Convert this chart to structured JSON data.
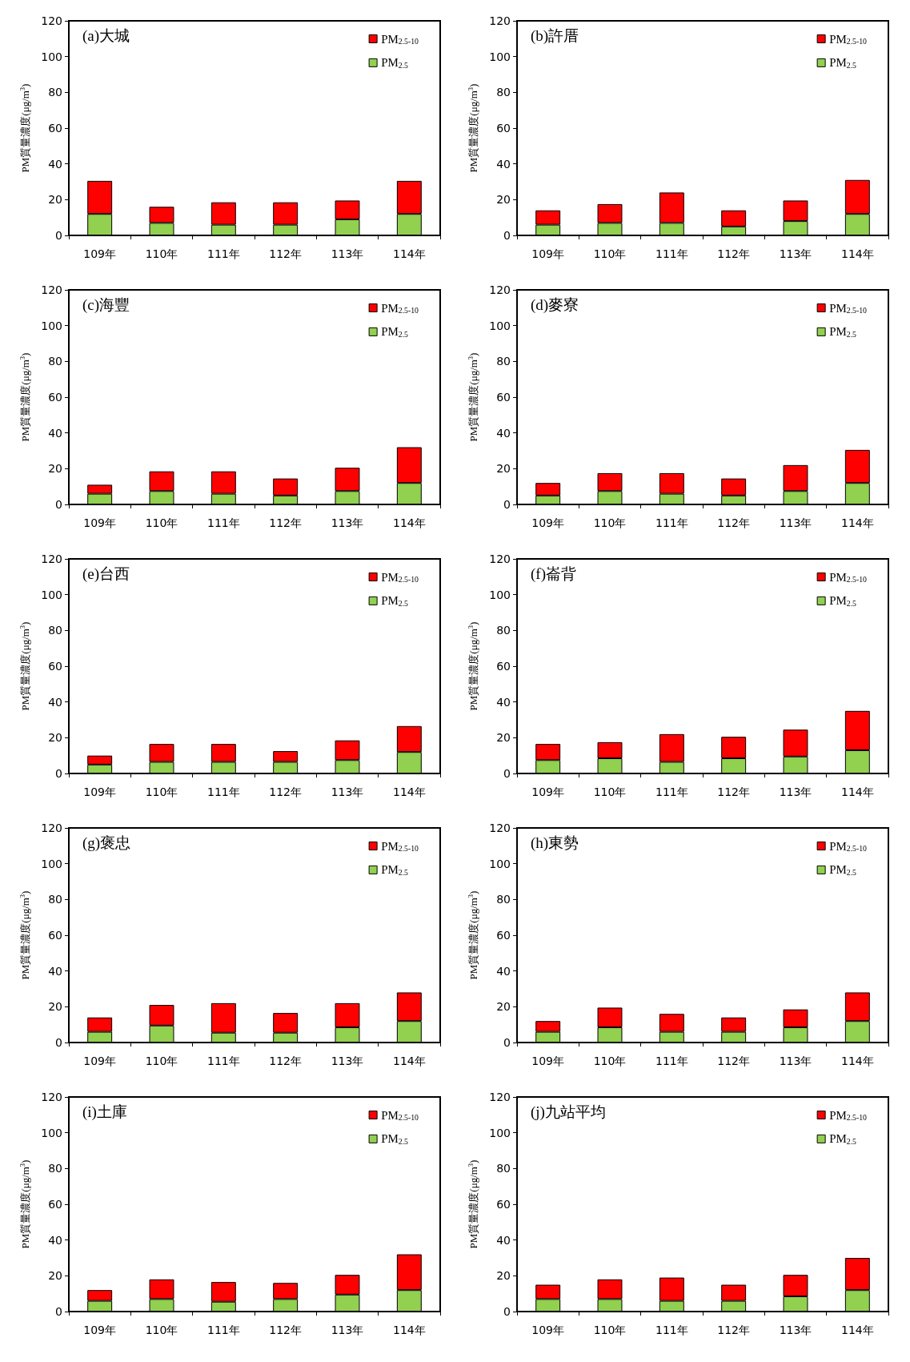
{
  "chart_data": [
    {
      "type": "bar",
      "title": "(a)大城",
      "ylabel": "PM質量濃度(μg/m$^{3}$)",
      "categories": [
        "109年",
        "110年",
        "111年",
        "112年",
        "113年",
        "114年"
      ],
      "stacked": true,
      "ylim": [
        0,
        120
      ],
      "yticks": [
        0,
        20,
        40,
        60,
        80,
        100,
        120
      ],
      "legend": "top right",
      "grid": false,
      "series": [
        {
          "name": "PM$_{2.5}$",
          "color": "#92d050",
          "values": [
            12,
            7,
            6,
            6,
            9,
            12
          ]
        },
        {
          "name": "PM$_{2.5-10}$",
          "color": "#ff0000",
          "values": [
            18.5,
            9,
            12.5,
            12.5,
            10.5,
            18.5
          ]
        }
      ]
    },
    {
      "type": "bar",
      "title": "(b)許厝",
      "ylabel": "PM質量濃度(μg/m$^{3}$)",
      "categories": [
        "109年",
        "110年",
        "111年",
        "112年",
        "113年",
        "114年"
      ],
      "stacked": true,
      "ylim": [
        0,
        120
      ],
      "yticks": [
        0,
        20,
        40,
        60,
        80,
        100,
        120
      ],
      "legend": "top right",
      "grid": false,
      "series": [
        {
          "name": "PM$_{2.5}$",
          "color": "#92d050",
          "values": [
            6,
            7,
            7,
            5,
            8,
            12
          ]
        },
        {
          "name": "PM$_{2.5-10}$",
          "color": "#ff0000",
          "values": [
            8,
            10.5,
            17,
            9,
            11.5,
            19
          ]
        }
      ]
    },
    {
      "type": "bar",
      "title": "(c)海豐",
      "ylabel": "PM質量濃度(μg/m$^{3}$)",
      "categories": [
        "109年",
        "110年",
        "111年",
        "112年",
        "113年",
        "114年"
      ],
      "stacked": true,
      "ylim": [
        0,
        120
      ],
      "yticks": [
        0,
        20,
        40,
        60,
        80,
        100,
        120
      ],
      "legend": "top right",
      "grid": false,
      "series": [
        {
          "name": "PM$_{2.5}$",
          "color": "#92d050",
          "values": [
            6,
            7.5,
            6,
            5,
            7.5,
            12
          ]
        },
        {
          "name": "PM$_{2.5-10}$",
          "color": "#ff0000",
          "values": [
            5,
            11,
            12.5,
            9.5,
            13,
            20
          ]
        }
      ]
    },
    {
      "type": "bar",
      "title": "(d)麥寮",
      "ylabel": "PM質量濃度(μg/m$^{3}$)",
      "categories": [
        "109年",
        "110年",
        "111年",
        "112年",
        "113年",
        "114年"
      ],
      "stacked": true,
      "ylim": [
        0,
        120
      ],
      "yticks": [
        0,
        20,
        40,
        60,
        80,
        100,
        120
      ],
      "legend": "top right",
      "grid": false,
      "series": [
        {
          "name": "PM$_{2.5}$",
          "color": "#92d050",
          "values": [
            5,
            7.5,
            6,
            5,
            7.5,
            12
          ]
        },
        {
          "name": "PM$_{2.5-10}$",
          "color": "#ff0000",
          "values": [
            7,
            10,
            11.5,
            9.5,
            14.5,
            18.5
          ]
        }
      ]
    },
    {
      "type": "bar",
      "title": "(e)台西",
      "ylabel": "PM質量濃度(μg/m$^{3}$)",
      "categories": [
        "109年",
        "110年",
        "111年",
        "112年",
        "113年",
        "114年"
      ],
      "stacked": true,
      "ylim": [
        0,
        120
      ],
      "yticks": [
        0,
        20,
        40,
        60,
        80,
        100,
        120
      ],
      "legend": "top right",
      "grid": false,
      "series": [
        {
          "name": "PM$_{2.5}$",
          "color": "#92d050",
          "values": [
            5,
            6.5,
            6.5,
            6.5,
            7.5,
            12
          ]
        },
        {
          "name": "PM$_{2.5-10}$",
          "color": "#ff0000",
          "values": [
            5,
            10,
            10,
            6,
            11,
            14.5
          ]
        }
      ]
    },
    {
      "type": "bar",
      "title": "(f)崙背",
      "ylabel": "PM質量濃度(μg/m$^{3}$)",
      "categories": [
        "109年",
        "110年",
        "111年",
        "112年",
        "113年",
        "114年"
      ],
      "stacked": true,
      "ylim": [
        0,
        120
      ],
      "yticks": [
        0,
        20,
        40,
        60,
        80,
        100,
        120
      ],
      "legend": "top right",
      "grid": false,
      "series": [
        {
          "name": "PM$_{2.5}$",
          "color": "#92d050",
          "values": [
            7.5,
            8.5,
            6.5,
            8.5,
            9.5,
            13
          ]
        },
        {
          "name": "PM$_{2.5-10}$",
          "color": "#ff0000",
          "values": [
            9,
            9,
            15.5,
            12,
            15,
            22
          ]
        }
      ]
    },
    {
      "type": "bar",
      "title": "(g)褒忠",
      "ylabel": "PM質量濃度(μg/m$^{3}$)",
      "categories": [
        "109年",
        "110年",
        "111年",
        "112年",
        "113年",
        "114年"
      ],
      "stacked": true,
      "ylim": [
        0,
        120
      ],
      "yticks": [
        0,
        20,
        40,
        60,
        80,
        100,
        120
      ],
      "legend": "top right",
      "grid": false,
      "series": [
        {
          "name": "PM$_{2.5}$",
          "color": "#92d050",
          "values": [
            6,
            9.5,
            5.5,
            5.5,
            8.5,
            12
          ]
        },
        {
          "name": "PM$_{2.5-10}$",
          "color": "#ff0000",
          "values": [
            8,
            11.5,
            16.5,
            11,
            13.5,
            16
          ]
        }
      ]
    },
    {
      "type": "bar",
      "title": "(h)東勢",
      "ylabel": "PM質量濃度(μg/m$^{3}$)",
      "categories": [
        "109年",
        "110年",
        "111年",
        "112年",
        "113年",
        "114年"
      ],
      "stacked": true,
      "ylim": [
        0,
        120
      ],
      "yticks": [
        0,
        20,
        40,
        60,
        80,
        100,
        120
      ],
      "legend": "top right",
      "grid": false,
      "series": [
        {
          "name": "PM$_{2.5}$",
          "color": "#92d050",
          "values": [
            6,
            8.5,
            6,
            6,
            8.5,
            12
          ]
        },
        {
          "name": "PM$_{2.5-10}$",
          "color": "#ff0000",
          "values": [
            6,
            11,
            10,
            8,
            10,
            16
          ]
        }
      ]
    },
    {
      "type": "bar",
      "title": "(i)土庫",
      "ylabel": "PM質量濃度(μg/m$^{3}$)",
      "categories": [
        "109年",
        "110年",
        "111年",
        "112年",
        "113年",
        "114年"
      ],
      "stacked": true,
      "ylim": [
        0,
        120
      ],
      "yticks": [
        0,
        20,
        40,
        60,
        80,
        100,
        120
      ],
      "legend": "top right",
      "grid": false,
      "series": [
        {
          "name": "PM$_{2.5}$",
          "color": "#92d050",
          "values": [
            6,
            7,
            5.5,
            7,
            9.5,
            12
          ]
        },
        {
          "name": "PM$_{2.5-10}$",
          "color": "#ff0000",
          "values": [
            6,
            11,
            11,
            9,
            11,
            20
          ]
        }
      ]
    },
    {
      "type": "bar",
      "title": "(j)九站平均",
      "ylabel": "PM質量濃度(μg/m$^{3}$)",
      "categories": [
        "109年",
        "110年",
        "111年",
        "112年",
        "113年",
        "114年"
      ],
      "stacked": true,
      "ylim": [
        0,
        120
      ],
      "yticks": [
        0,
        20,
        40,
        60,
        80,
        100,
        120
      ],
      "legend": "top right",
      "grid": false,
      "series": [
        {
          "name": "PM$_{2.5}$",
          "color": "#92d050",
          "values": [
            7,
            7,
            6,
            6,
            8.5,
            12
          ]
        },
        {
          "name": "PM$_{2.5-10}$",
          "color": "#ff0000",
          "values": [
            8,
            11,
            13,
            9,
            12,
            18
          ]
        }
      ]
    }
  ]
}
